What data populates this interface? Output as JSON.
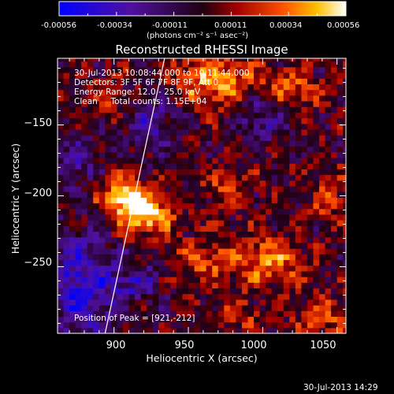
{
  "chart_data": {
    "type": "heatmap",
    "title": "Reconstructed RHESSI Image",
    "xlabel": "Heliocentric X (arcsec)",
    "ylabel": "Heliocentric Y (arcsec)",
    "xlim": [
      862,
      1056
    ],
    "ylim": [
      -297,
      -103
    ],
    "xticks": [
      900,
      950,
      1000,
      1050
    ],
    "yticks": [
      -150,
      -200,
      -250
    ],
    "colorbar": {
      "range": [
        -0.00056,
        0.00056
      ],
      "ticks": [
        "-0.00056",
        "-0.00034",
        "-0.00011",
        "0.00011",
        "0.00034",
        "0.00056"
      ],
      "unit_label": "(photons cm⁻² s⁻¹ asec⁻²)",
      "colormap": "blue-purple-red-yellow-white"
    },
    "annotations": {
      "time_range": "30-Jul-2013 10:08:44.000 to 10:11:44.000",
      "detectors": "Detectors: 3F 5F 6F 7F 8F 9F, Att 0",
      "energy": "Energy Range: 12.0 - 25.0 keV",
      "clean": "Clean     Total counts: 1.15E+04",
      "peak": "Position of Peak = [921,-212]"
    },
    "peak": {
      "x": 921,
      "y": -212
    },
    "limb_line": [
      {
        "x": 894,
        "y": -297
      },
      {
        "x": 934,
        "y": -103
      }
    ],
    "sources": [
      {
        "x": 921,
        "y": -212,
        "amp": 1.0,
        "sx": 12,
        "sy": 10
      },
      {
        "x": 905,
        "y": -200,
        "amp": 0.85,
        "sx": 10,
        "sy": 9
      },
      {
        "x": 968,
        "y": -118,
        "amp": 0.75,
        "sx": 18,
        "sy": 12
      },
      {
        "x": 1020,
        "y": -125,
        "amp": 0.5,
        "sx": 14,
        "sy": 10
      },
      {
        "x": 1005,
        "y": -245,
        "amp": 0.65,
        "sx": 16,
        "sy": 12
      },
      {
        "x": 960,
        "y": -245,
        "amp": 0.45,
        "sx": 14,
        "sy": 12
      },
      {
        "x": 1040,
        "y": -285,
        "amp": 0.45,
        "sx": 12,
        "sy": 10
      },
      {
        "x": 975,
        "y": -195,
        "amp": 0.35,
        "sx": 12,
        "sy": 10
      },
      {
        "x": 1045,
        "y": -200,
        "amp": 0.35,
        "sx": 10,
        "sy": 12
      },
      {
        "x": 985,
        "y": -285,
        "amp": 0.35,
        "sx": 12,
        "sy": 10
      },
      {
        "x": 895,
        "y": -130,
        "amp": 0.3,
        "sx": 10,
        "sy": 10
      }
    ],
    "negative_regions": [
      {
        "x": 878,
        "y": -265,
        "amp": 0.75,
        "sx": 16,
        "sy": 26
      },
      {
        "x": 875,
        "y": -175,
        "amp": 0.5,
        "sx": 10,
        "sy": 12
      },
      {
        "x": 925,
        "y": -148,
        "amp": 0.5,
        "sx": 12,
        "sy": 12
      },
      {
        "x": 1000,
        "y": -145,
        "amp": 0.45,
        "sx": 12,
        "sy": 12
      },
      {
        "x": 915,
        "y": -262,
        "amp": 0.45,
        "sx": 12,
        "sy": 10
      }
    ]
  },
  "footer": {
    "timestamp": "30-Jul-2013 14:29"
  }
}
